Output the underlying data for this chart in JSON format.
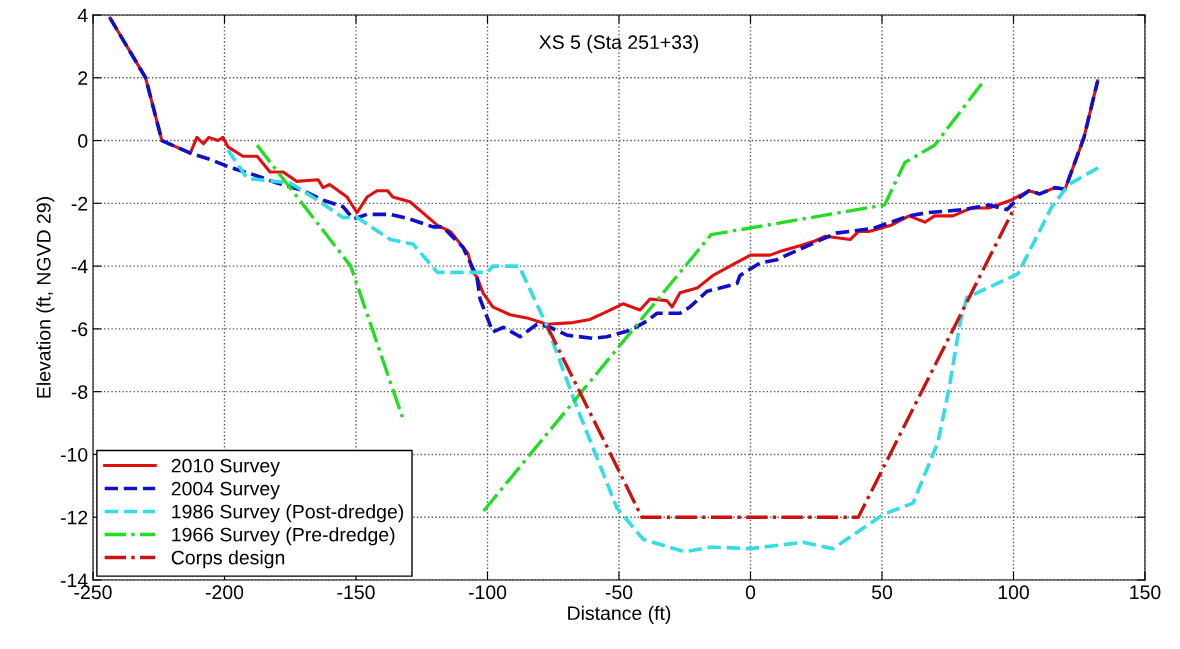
{
  "chart_data": {
    "type": "line",
    "title": "XS 5 (Sta 251+33)",
    "xlabel": "Distance (ft)",
    "ylabel": "Elevation (ft, NGVD 29)",
    "xlim": [
      -250,
      150
    ],
    "xticks": [
      -250,
      -200,
      -150,
      -100,
      -50,
      0,
      50,
      100,
      150
    ],
    "ylim": [
      -14,
      4
    ],
    "yticks": [
      -14,
      -12,
      -10,
      -8,
      -6,
      -4,
      -2,
      0,
      2,
      4
    ],
    "grid": true,
    "legend": "bottom left",
    "series": [
      {
        "name": "2010 Survey",
        "color": "#e01010",
        "line_style": "solid",
        "x": [
          -243.5,
          -230,
          -223.8,
          -213,
          -210.5,
          -208,
          -206,
          -202.5,
          -200.6,
          -198.7,
          -193,
          -187.6,
          -182.7,
          -177.7,
          -172.6,
          -164.4,
          -162.5,
          -160,
          -153.4,
          -149.6,
          -145.8,
          -142,
          -138,
          -136,
          -129.5,
          -119,
          -114,
          -107.4,
          -105.5,
          -104,
          -101.7,
          -98,
          -91.4,
          -85,
          -77.4,
          -67.5,
          -61,
          -54.6,
          -48.5,
          -42,
          -38.2,
          -31.8,
          -29.8,
          -26.8,
          -20.3,
          -14.3,
          -7.8,
          0,
          7.4,
          12.4,
          18.8,
          24.5,
          28.3,
          38,
          41,
          45,
          53.4,
          60.3,
          66.3,
          70,
          77,
          83.8,
          90.7,
          99,
          105.9,
          110,
          115.8,
          119.6,
          126.8,
          132
        ],
        "values": [
          3.9,
          2.0,
          0,
          -0.4,
          0.1,
          -0.1,
          0.1,
          0,
          0.1,
          -0.2,
          -0.5,
          -0.5,
          -1.0,
          -1.0,
          -1.3,
          -1.25,
          -1.5,
          -1.4,
          -1.8,
          -2.3,
          -1.8,
          -1.6,
          -1.6,
          -1.8,
          -1.95,
          -2.7,
          -2.9,
          -3.6,
          -4.2,
          -4.35,
          -4.85,
          -5.3,
          -5.55,
          -5.65,
          -5.85,
          -5.8,
          -5.7,
          -5.45,
          -5.2,
          -5.4,
          -5.05,
          -5.1,
          -5.3,
          -4.85,
          -4.7,
          -4.3,
          -4.0,
          -3.65,
          -3.65,
          -3.5,
          -3.35,
          -3.2,
          -3.05,
          -3.15,
          -2.9,
          -2.9,
          -2.7,
          -2.4,
          -2.6,
          -2.4,
          -2.4,
          -2.15,
          -2.15,
          -1.9,
          -1.6,
          -1.7,
          -1.5,
          -1.55,
          0.1,
          1.9
        ]
      },
      {
        "name": "2004 Survey",
        "color": "#1010c8",
        "line_style": "dashed",
        "x": [
          -243.5,
          -230,
          -223.8,
          -213,
          -205.5,
          -198,
          -190.3,
          -180,
          -170,
          -162.5,
          -155,
          -151,
          -145.8,
          -137,
          -129.5,
          -120.7,
          -117,
          -109.3,
          -104,
          -102.8,
          -98,
          -94,
          -87.6,
          -81.2,
          -76.2,
          -69.8,
          -59.9,
          -54.6,
          -45.8,
          -39.4,
          -35.5,
          -26.8,
          -23,
          -16.5,
          -11.6,
          -5.1,
          -4,
          3.6,
          10,
          17.7,
          32.5,
          46.6,
          60.3,
          67,
          81,
          90.7,
          97.5,
          101.7,
          105.9,
          110,
          115.8,
          119.6,
          126.8,
          132
        ],
        "values": [
          3.9,
          2.0,
          0,
          -0.4,
          -0.6,
          -0.85,
          -1.05,
          -1.35,
          -1.6,
          -1.9,
          -2.1,
          -2.5,
          -2.35,
          -2.35,
          -2.5,
          -2.75,
          -2.75,
          -3.4,
          -4.35,
          -5.05,
          -6.1,
          -5.95,
          -6.25,
          -5.85,
          -5.95,
          -6.2,
          -6.3,
          -6.25,
          -6.05,
          -5.75,
          -5.5,
          -5.5,
          -5.3,
          -4.8,
          -4.7,
          -4.55,
          -4.3,
          -3.9,
          -3.8,
          -3.5,
          -2.95,
          -2.8,
          -2.4,
          -2.3,
          -2.2,
          -2.05,
          -2.2,
          -1.85,
          -1.6,
          -1.7,
          -1.5,
          -1.55,
          0.1,
          1.9
        ]
      },
      {
        "name": "1986 Survey (Post-dredge)",
        "color": "#33dde8",
        "line_style": "dashed",
        "x": [
          -198.7,
          -191.4,
          -186.5,
          -175,
          -163.7,
          -155,
          -149.6,
          -137,
          -128.3,
          -119,
          -100,
          -98,
          -88,
          -77.4,
          -66,
          -58.4,
          -50.8,
          -40.9,
          -25,
          -15,
          0,
          20,
          31.4,
          50.7,
          61.8,
          71.3,
          75.5,
          79.7,
          82.3,
          101.7,
          114.3,
          121,
          133.6
        ],
        "values": [
          -0.3,
          -1.2,
          -1.25,
          -1.35,
          -1.95,
          -2.45,
          -2.45,
          -3.15,
          -3.3,
          -4.2,
          -4.2,
          -4.0,
          -4.0,
          -5.9,
          -8.5,
          -10.1,
          -11.7,
          -12.7,
          -13.1,
          -12.95,
          -13.0,
          -12.8,
          -13.0,
          -11.9,
          -11.55,
          -9.6,
          -7.9,
          -5.8,
          -5.0,
          -4.25,
          -2.15,
          -1.4,
          -0.8
        ]
      },
      {
        "name": "1966 Survey (Pre-dredge)",
        "color": "#22dd22",
        "line_style": "dashdot",
        "x": [
          -187.6,
          -152,
          -132,
          -115,
          -101.5,
          -15,
          51,
          58.7,
          70,
          89.2
        ],
        "values": [
          -0.15,
          -4.0,
          -8.9,
          null,
          -11.8,
          -3.0,
          -2.05,
          -0.7,
          -0.15,
          1.95
        ]
      },
      {
        "name": "Corps design",
        "color": "#cc1111",
        "line_style": "dashdot",
        "x": [
          -77.4,
          -41.3,
          41,
          100.6
        ],
        "values": [
          -5.9,
          -12.0,
          -12.0,
          -2.1
        ]
      }
    ]
  }
}
